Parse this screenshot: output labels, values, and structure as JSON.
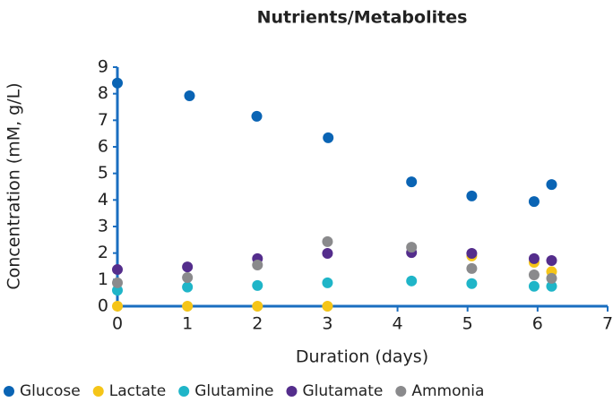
{
  "chart_data": {
    "type": "scatter",
    "title": "Nutrients/Metabolites",
    "x_label": "Duration (days)",
    "y_label": "Concentration (mM, g/L)",
    "xlim": [
      0,
      7
    ],
    "ylim": [
      0,
      9
    ],
    "xticks": [
      0,
      1,
      2,
      3,
      4,
      5,
      6,
      7
    ],
    "yticks": [
      0,
      1,
      2,
      3,
      4,
      5,
      6,
      7,
      8,
      9
    ],
    "grid": false,
    "legend": "bottom",
    "axis_color": "#1a6ec0",
    "series": [
      {
        "name": "Glucose",
        "color": "#0a64b4",
        "x": [
          0,
          1.03,
          1.99,
          3.01,
          4.2,
          5.06,
          5.95,
          6.2
        ],
        "values": [
          8.4,
          7.92,
          7.15,
          6.34,
          4.68,
          4.15,
          3.94,
          4.58
        ]
      },
      {
        "name": "Lactate",
        "color": "#f5c518",
        "x": [
          0,
          1,
          2,
          3,
          5.06,
          5.95,
          6.2
        ],
        "values": [
          0,
          0,
          0,
          0,
          1.89,
          1.65,
          1.3
        ]
      },
      {
        "name": "Glutamine",
        "color": "#1fb5c8",
        "x": [
          0,
          1,
          2,
          3,
          4.2,
          5.06,
          5.95,
          6.2
        ],
        "values": [
          0.6,
          0.72,
          0.78,
          0.88,
          0.95,
          0.85,
          0.75,
          0.75
        ]
      },
      {
        "name": "Glutamate",
        "color": "#542d8c",
        "x": [
          0,
          1,
          2,
          3,
          4.2,
          5.06,
          5.95,
          6.2
        ],
        "values": [
          1.38,
          1.48,
          1.79,
          1.99,
          2.02,
          1.99,
          1.79,
          1.72
        ]
      },
      {
        "name": "Ammonia",
        "color": "#8a8a8c",
        "x": [
          0,
          1,
          2,
          3,
          4.2,
          5.06,
          5.95,
          6.2
        ],
        "values": [
          0.88,
          1.08,
          1.55,
          2.43,
          2.22,
          1.42,
          1.18,
          1.05
        ]
      }
    ]
  }
}
